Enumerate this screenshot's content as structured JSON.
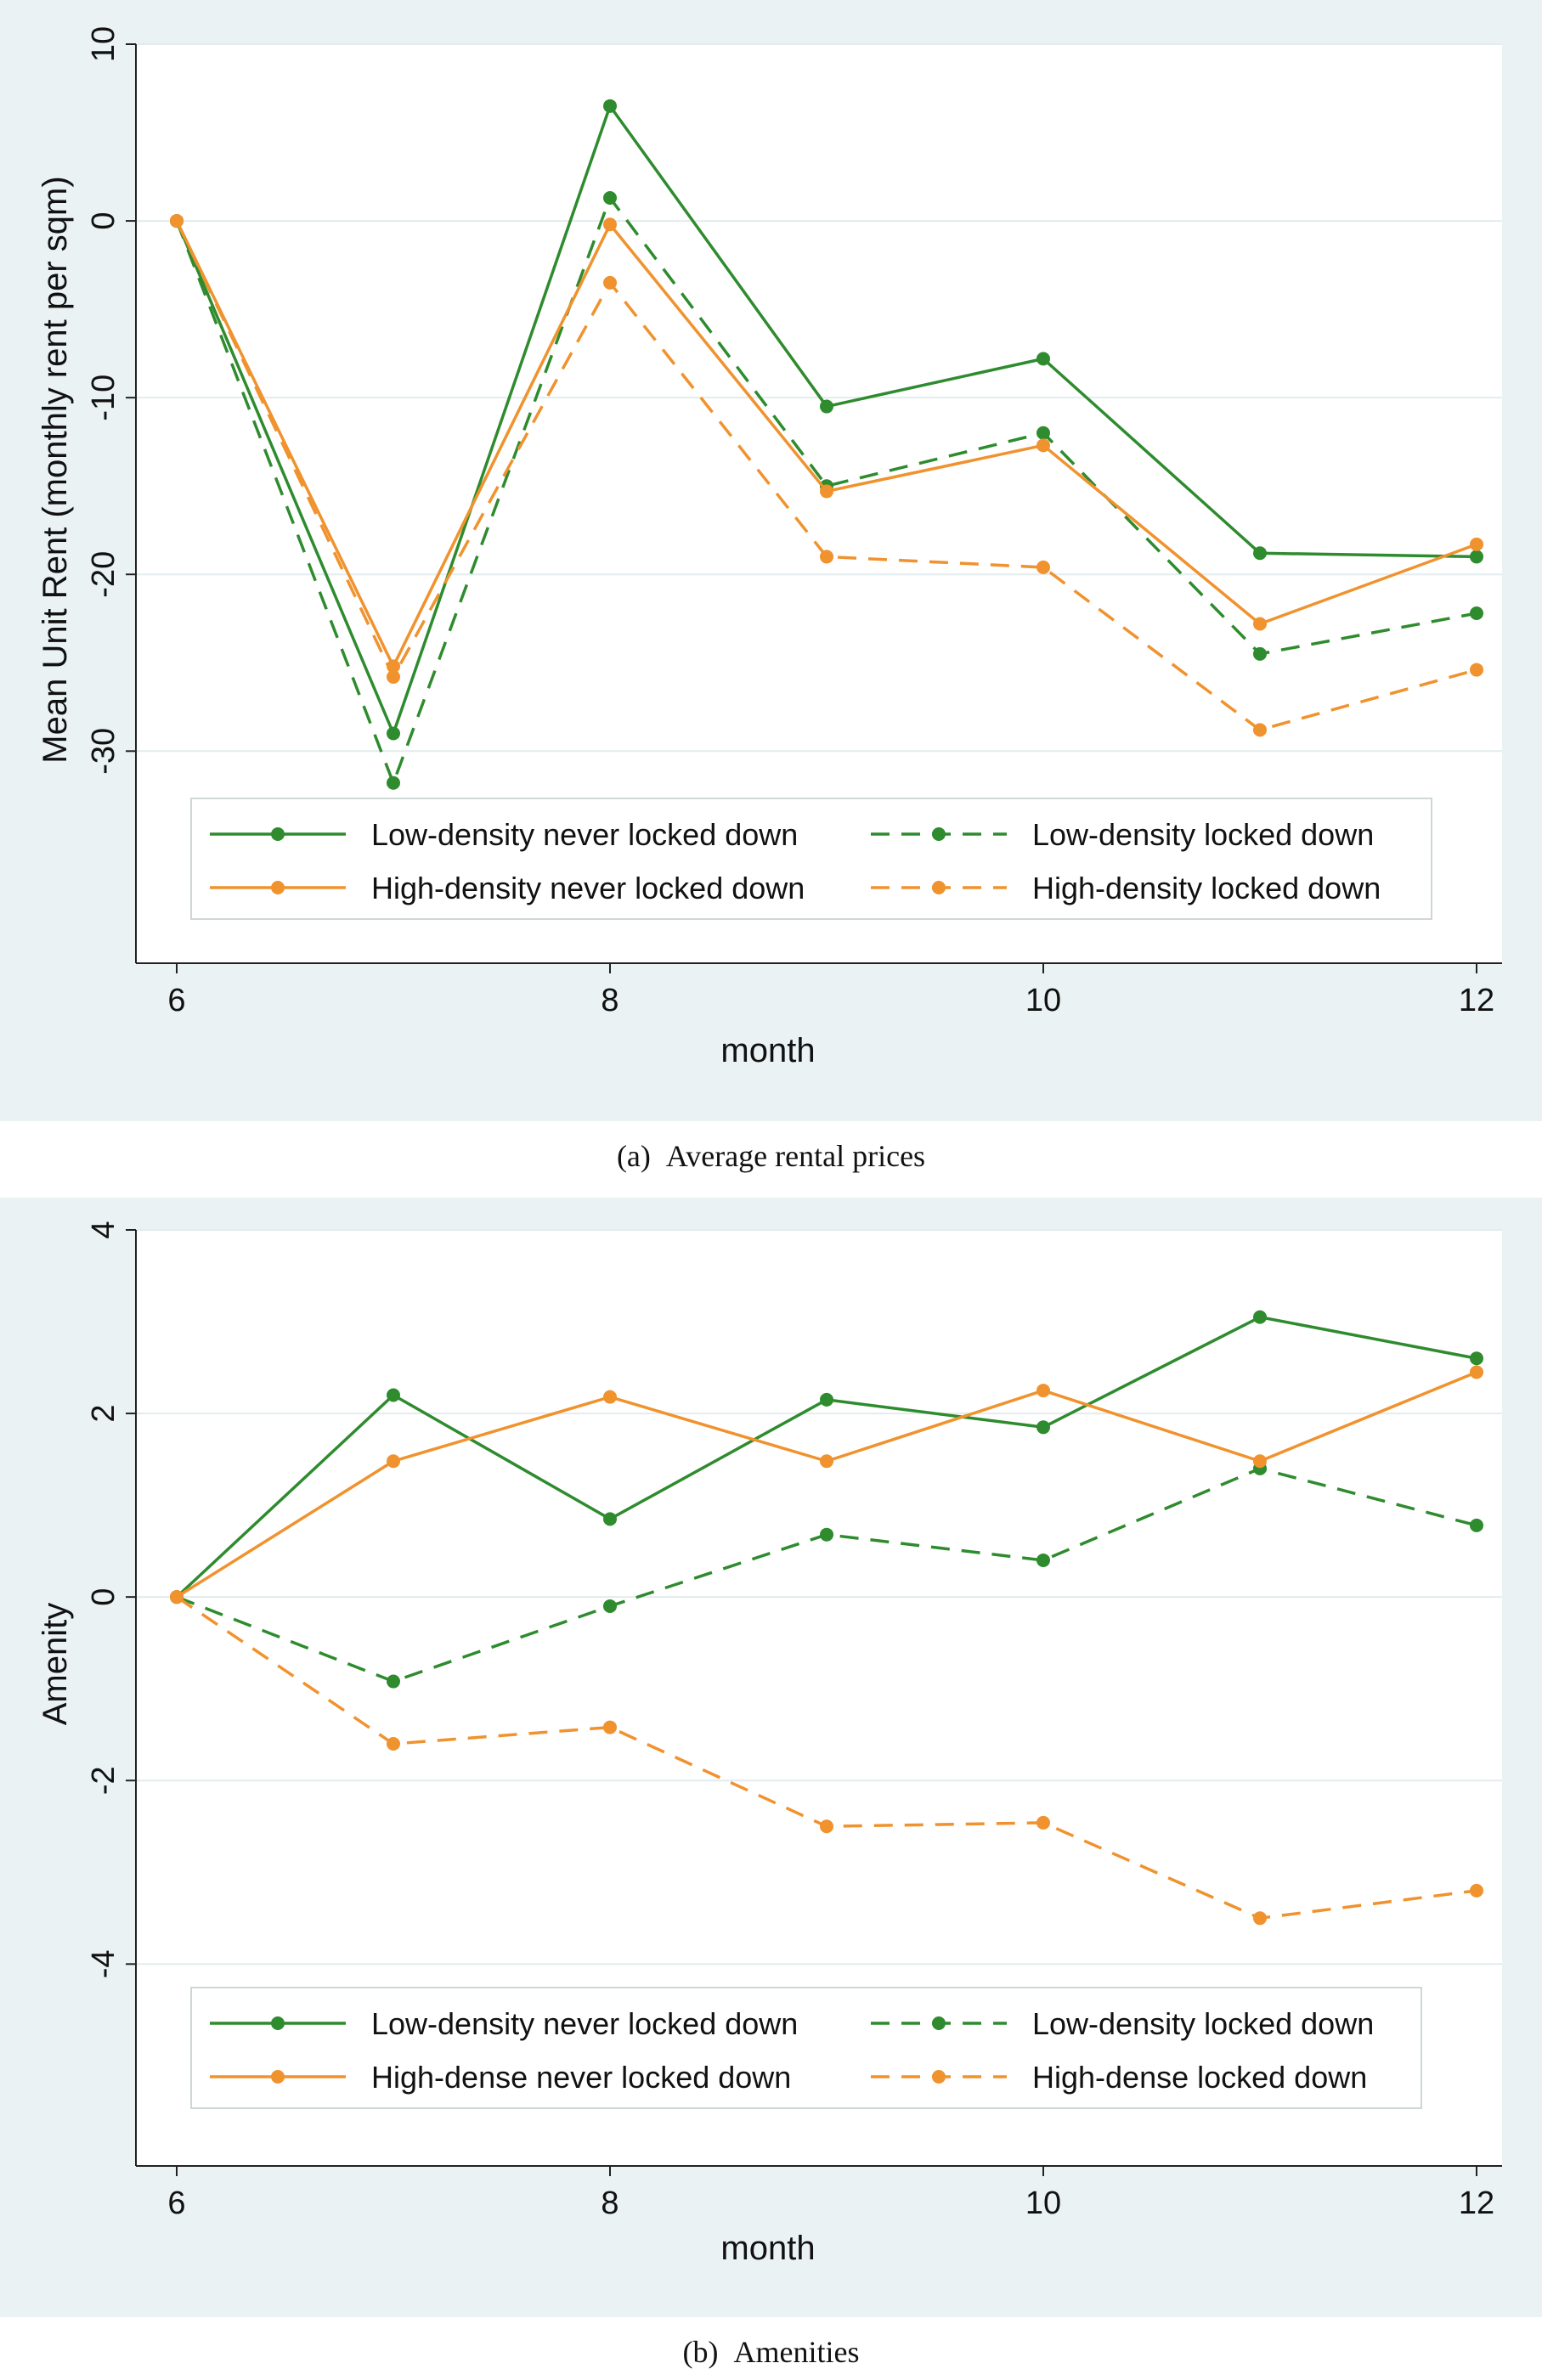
{
  "chart_data": [
    {
      "type": "line",
      "caption_label": "(a)",
      "caption_text": "Average rental prices",
      "xlabel": "month",
      "ylabel": "Mean Unit Rent (monthly rent per sqm)",
      "x": [
        6,
        7,
        8,
        9,
        10,
        11,
        12
      ],
      "xlim": [
        6,
        12
      ],
      "xticks": [
        6,
        8,
        10,
        12
      ],
      "ylim": [
        -42,
        10
      ],
      "yticks": [
        10,
        0,
        -10,
        -20,
        -30
      ],
      "grid": true,
      "legend_placement": "bottom-inside",
      "series": [
        {
          "name": "Low-density never locked down",
          "color": "#2e8b2e",
          "dash": false,
          "values": [
            0,
            -29,
            6.5,
            -10.5,
            -7.8,
            -18.8,
            -19
          ]
        },
        {
          "name": "Low-density locked down",
          "color": "#2e8b2e",
          "dash": true,
          "values": [
            0,
            -31.8,
            1.3,
            -15,
            -12,
            -24.5,
            -22.2
          ]
        },
        {
          "name": "High-density never locked down",
          "color": "#f0922e",
          "dash": false,
          "values": [
            0,
            -25.2,
            -0.2,
            -15.3,
            -12.7,
            -22.8,
            -18.3
          ]
        },
        {
          "name": "High-density locked down",
          "color": "#f0922e",
          "dash": true,
          "values": [
            0,
            -25.8,
            -3.5,
            -19,
            -19.6,
            -28.8,
            -25.4
          ]
        }
      ]
    },
    {
      "type": "line",
      "caption_label": "(b)",
      "caption_text": "Amenities",
      "xlabel": "month",
      "ylabel": "Amenity",
      "x": [
        6,
        7,
        8,
        9,
        10,
        11,
        12
      ],
      "xlim": [
        6,
        12
      ],
      "xticks": [
        6,
        8,
        10,
        12
      ],
      "ylim": [
        -6.2,
        4
      ],
      "yticks": [
        4,
        2,
        0,
        -2,
        -4
      ],
      "grid": true,
      "legend_placement": "bottom-inside",
      "series": [
        {
          "name": "Low-density never locked down",
          "color": "#2e8b2e",
          "dash": false,
          "values": [
            0,
            2.2,
            0.85,
            2.15,
            1.85,
            3.05,
            2.6
          ]
        },
        {
          "name": "Low-density locked down",
          "color": "#2e8b2e",
          "dash": true,
          "values": [
            0,
            -0.92,
            -0.1,
            0.68,
            0.4,
            1.4,
            0.78
          ]
        },
        {
          "name": "High-dense never locked down",
          "color": "#f0922e",
          "dash": false,
          "values": [
            0,
            1.48,
            2.18,
            1.48,
            2.25,
            1.48,
            2.45
          ]
        },
        {
          "name": "High-dense locked down",
          "color": "#f0922e",
          "dash": true,
          "values": [
            0,
            -1.6,
            -1.42,
            -2.5,
            -2.46,
            -3.5,
            -3.2
          ]
        }
      ]
    }
  ]
}
